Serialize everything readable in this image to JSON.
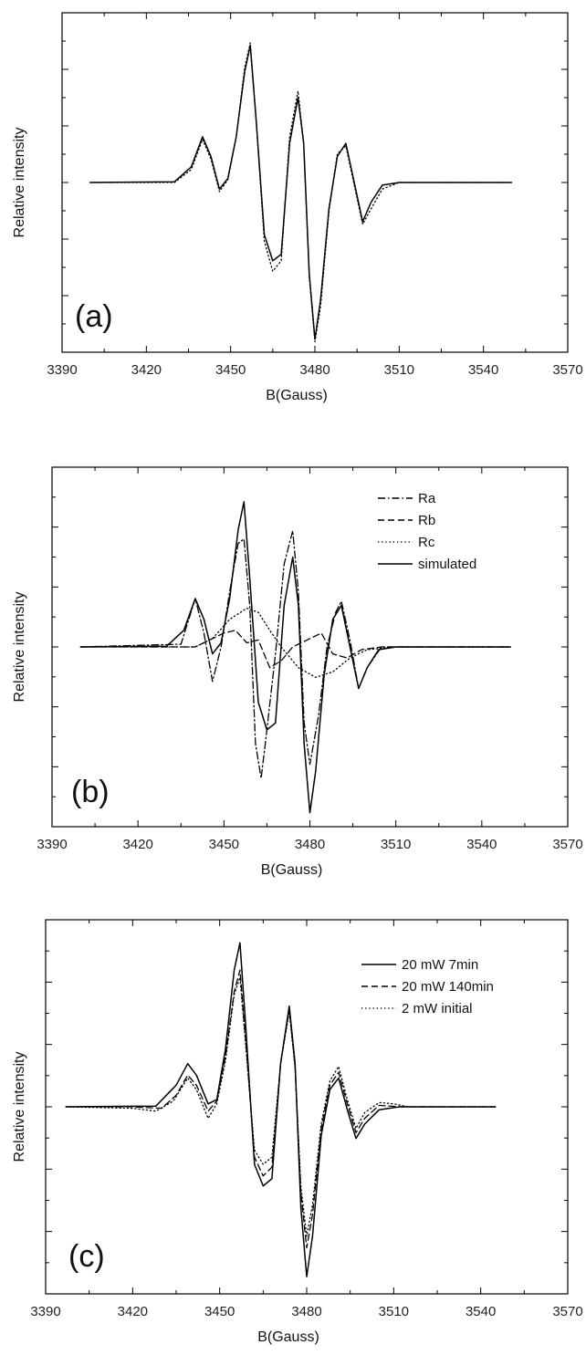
{
  "chart_data": [
    {
      "type": "line",
      "panel_label": "(a)",
      "xlabel": "B(Gauss)",
      "ylabel": "Relative intensity",
      "xlim": [
        3390,
        3570
      ],
      "ylim": [
        -1.3,
        1.3
      ],
      "xticks": [
        3390,
        3420,
        3450,
        3480,
        3510,
        3540,
        3570
      ],
      "legend": "none",
      "grid": false,
      "series": [
        {
          "style": "solid",
          "points": [
            [
              3400,
              0
            ],
            [
              3430,
              0.005
            ],
            [
              3436,
              0.12
            ],
            [
              3440,
              0.35
            ],
            [
              3443,
              0.2
            ],
            [
              3446,
              -0.05
            ],
            [
              3449,
              0.03
            ],
            [
              3452,
              0.35
            ],
            [
              3455,
              0.85
            ],
            [
              3457,
              1.05
            ],
            [
              3459,
              0.5
            ],
            [
              3462,
              -0.4
            ],
            [
              3465,
              -0.6
            ],
            [
              3468,
              -0.55
            ],
            [
              3471,
              0.3
            ],
            [
              3474,
              0.65
            ],
            [
              3476,
              0.3
            ],
            [
              3478,
              -0.7
            ],
            [
              3480,
              -1.2
            ],
            [
              3482,
              -0.9
            ],
            [
              3485,
              -0.2
            ],
            [
              3488,
              0.2
            ],
            [
              3491,
              0.3
            ],
            [
              3494,
              0.0
            ],
            [
              3497,
              -0.3
            ],
            [
              3500,
              -0.15
            ],
            [
              3504,
              -0.02
            ],
            [
              3510,
              0
            ],
            [
              3550,
              0
            ]
          ]
        },
        {
          "style": "dotted",
          "points": [
            [
              3400,
              0
            ],
            [
              3430,
              0.0
            ],
            [
              3436,
              0.1
            ],
            [
              3440,
              0.33
            ],
            [
              3443,
              0.18
            ],
            [
              3446,
              -0.07
            ],
            [
              3449,
              0.02
            ],
            [
              3452,
              0.35
            ],
            [
              3455,
              0.88
            ],
            [
              3457,
              1.07
            ],
            [
              3459,
              0.5
            ],
            [
              3462,
              -0.45
            ],
            [
              3465,
              -0.68
            ],
            [
              3468,
              -0.6
            ],
            [
              3471,
              0.35
            ],
            [
              3474,
              0.7
            ],
            [
              3476,
              0.3
            ],
            [
              3478,
              -0.72
            ],
            [
              3480,
              -1.22
            ],
            [
              3482,
              -0.95
            ],
            [
              3485,
              -0.22
            ],
            [
              3488,
              0.22
            ],
            [
              3491,
              0.28
            ],
            [
              3494,
              -0.02
            ],
            [
              3497,
              -0.32
            ],
            [
              3500,
              -0.2
            ],
            [
              3504,
              -0.05
            ],
            [
              3510,
              0
            ],
            [
              3550,
              0
            ]
          ]
        }
      ]
    },
    {
      "type": "line",
      "panel_label": "(b)",
      "xlabel": "B(Gauss)",
      "ylabel": "Relative intensity",
      "xlim": [
        3390,
        3570
      ],
      "ylim": [
        -1.3,
        1.3
      ],
      "xticks": [
        3390,
        3420,
        3450,
        3480,
        3510,
        3540,
        3570
      ],
      "legend": "top-right",
      "grid": false,
      "series": [
        {
          "name": "Ra",
          "style": "dashdot",
          "points": [
            [
              3400,
              0
            ],
            [
              3435,
              0.02
            ],
            [
              3440,
              0.35
            ],
            [
              3443,
              0.1
            ],
            [
              3446,
              -0.25
            ],
            [
              3449,
              0
            ],
            [
              3452,
              0.4
            ],
            [
              3455,
              0.75
            ],
            [
              3457,
              0.78
            ],
            [
              3459,
              0.3
            ],
            [
              3461,
              -0.7
            ],
            [
              3463,
              -0.95
            ],
            [
              3465,
              -0.6
            ],
            [
              3468,
              -0.05
            ],
            [
              3471,
              0.6
            ],
            [
              3474,
              0.84
            ],
            [
              3476,
              0.4
            ],
            [
              3478,
              -0.55
            ],
            [
              3480,
              -0.85
            ],
            [
              3483,
              -0.5
            ],
            [
              3486,
              0
            ],
            [
              3489,
              0.25
            ],
            [
              3491,
              0.33
            ],
            [
              3494,
              0.05
            ],
            [
              3497,
              -0.3
            ],
            [
              3500,
              -0.15
            ],
            [
              3505,
              0
            ],
            [
              3550,
              0
            ]
          ]
        },
        {
          "name": "Rb",
          "style": "dashed",
          "points": [
            [
              3400,
              0
            ],
            [
              3440,
              0
            ],
            [
              3450,
              0.1
            ],
            [
              3454,
              0.12
            ],
            [
              3458,
              0.03
            ],
            [
              3462,
              0.05
            ],
            [
              3466,
              -0.15
            ],
            [
              3470,
              -0.1
            ],
            [
              3474,
              0
            ],
            [
              3479,
              0.05
            ],
            [
              3484,
              0.1
            ],
            [
              3488,
              -0.05
            ],
            [
              3493,
              -0.08
            ],
            [
              3498,
              -0.02
            ],
            [
              3505,
              0
            ],
            [
              3550,
              0
            ]
          ]
        },
        {
          "name": "Rc",
          "style": "dotted",
          "points": [
            [
              3400,
              0
            ],
            [
              3440,
              0
            ],
            [
              3446,
              0.06
            ],
            [
              3452,
              0.2
            ],
            [
              3458,
              0.28
            ],
            [
              3462,
              0.25
            ],
            [
              3466,
              0.12
            ],
            [
              3470,
              0
            ],
            [
              3476,
              -0.15
            ],
            [
              3482,
              -0.22
            ],
            [
              3488,
              -0.18
            ],
            [
              3494,
              -0.08
            ],
            [
              3500,
              -0.02
            ],
            [
              3510,
              0
            ],
            [
              3550,
              0
            ]
          ]
        },
        {
          "name": "simulated",
          "style": "solid",
          "points": [
            [
              3400,
              0
            ],
            [
              3430,
              0.005
            ],
            [
              3436,
              0.12
            ],
            [
              3440,
              0.35
            ],
            [
              3443,
              0.2
            ],
            [
              3446,
              -0.05
            ],
            [
              3449,
              0.03
            ],
            [
              3452,
              0.35
            ],
            [
              3455,
              0.85
            ],
            [
              3457,
              1.05
            ],
            [
              3459,
              0.5
            ],
            [
              3462,
              -0.4
            ],
            [
              3465,
              -0.6
            ],
            [
              3468,
              -0.55
            ],
            [
              3471,
              0.3
            ],
            [
              3474,
              0.65
            ],
            [
              3476,
              0.3
            ],
            [
              3478,
              -0.7
            ],
            [
              3480,
              -1.2
            ],
            [
              3482,
              -0.9
            ],
            [
              3485,
              -0.2
            ],
            [
              3488,
              0.2
            ],
            [
              3491,
              0.3
            ],
            [
              3494,
              0.0
            ],
            [
              3497,
              -0.3
            ],
            [
              3500,
              -0.15
            ],
            [
              3504,
              -0.02
            ],
            [
              3510,
              0
            ],
            [
              3550,
              0
            ]
          ]
        }
      ]
    },
    {
      "type": "line",
      "panel_label": "(c)",
      "xlabel": "B(Gauss)",
      "ylabel": "Relative intensity",
      "xlim": [
        3390,
        3570
      ],
      "ylim": [
        -1.3,
        1.3
      ],
      "xticks": [
        3390,
        3420,
        3450,
        3480,
        3510,
        3540,
        3570
      ],
      "legend": "top-right",
      "grid": false,
      "series": [
        {
          "name": "20 mW 7min",
          "style": "solid",
          "points": [
            [
              3397,
              0
            ],
            [
              3428,
              0.005
            ],
            [
              3435,
              0.15
            ],
            [
              3439,
              0.3
            ],
            [
              3442,
              0.22
            ],
            [
              3446,
              0.02
            ],
            [
              3449,
              0.05
            ],
            [
              3452,
              0.4
            ],
            [
              3455,
              0.95
            ],
            [
              3457,
              1.14
            ],
            [
              3459,
              0.55
            ],
            [
              3462,
              -0.4
            ],
            [
              3465,
              -0.55
            ],
            [
              3468,
              -0.5
            ],
            [
              3471,
              0.3
            ],
            [
              3474,
              0.7
            ],
            [
              3476,
              0.3
            ],
            [
              3478,
              -0.7
            ],
            [
              3480,
              -1.18
            ],
            [
              3482,
              -0.9
            ],
            [
              3485,
              -0.2
            ],
            [
              3488,
              0.12
            ],
            [
              3491,
              0.2
            ],
            [
              3494,
              -0.02
            ],
            [
              3497,
              -0.22
            ],
            [
              3500,
              -0.12
            ],
            [
              3505,
              -0.02
            ],
            [
              3512,
              0
            ],
            [
              3545,
              0
            ]
          ]
        },
        {
          "name": "20 mW 140min",
          "style": "dashed",
          "points": [
            [
              3397,
              0
            ],
            [
              3420,
              0
            ],
            [
              3430,
              -0.01
            ],
            [
              3435,
              0.08
            ],
            [
              3439,
              0.22
            ],
            [
              3442,
              0.15
            ],
            [
              3446,
              -0.03
            ],
            [
              3449,
              0.04
            ],
            [
              3452,
              0.35
            ],
            [
              3455,
              0.8
            ],
            [
              3457,
              0.95
            ],
            [
              3459,
              0.45
            ],
            [
              3462,
              -0.35
            ],
            [
              3465,
              -0.48
            ],
            [
              3468,
              -0.42
            ],
            [
              3471,
              0.3
            ],
            [
              3474,
              0.68
            ],
            [
              3476,
              0.28
            ],
            [
              3478,
              -0.6
            ],
            [
              3480,
              -0.98
            ],
            [
              3482,
              -0.75
            ],
            [
              3485,
              -0.15
            ],
            [
              3488,
              0.15
            ],
            [
              3491,
              0.24
            ],
            [
              3494,
              0.02
            ],
            [
              3497,
              -0.18
            ],
            [
              3500,
              -0.08
            ],
            [
              3505,
              0.01
            ],
            [
              3512,
              0
            ],
            [
              3545,
              0
            ]
          ]
        },
        {
          "name": "2 mW initial",
          "style": "dotted",
          "points": [
            [
              3397,
              0
            ],
            [
              3420,
              -0.01
            ],
            [
              3428,
              -0.03
            ],
            [
              3434,
              0.04
            ],
            [
              3439,
              0.2
            ],
            [
              3442,
              0.12
            ],
            [
              3446,
              -0.08
            ],
            [
              3449,
              0.02
            ],
            [
              3452,
              0.32
            ],
            [
              3455,
              0.78
            ],
            [
              3457,
              0.9
            ],
            [
              3459,
              0.42
            ],
            [
              3462,
              -0.3
            ],
            [
              3465,
              -0.4
            ],
            [
              3468,
              -0.35
            ],
            [
              3471,
              0.3
            ],
            [
              3474,
              0.66
            ],
            [
              3476,
              0.27
            ],
            [
              3478,
              -0.55
            ],
            [
              3480,
              -0.9
            ],
            [
              3482,
              -0.68
            ],
            [
              3485,
              -0.12
            ],
            [
              3488,
              0.18
            ],
            [
              3491,
              0.28
            ],
            [
              3494,
              0.05
            ],
            [
              3497,
              -0.15
            ],
            [
              3500,
              -0.04
            ],
            [
              3505,
              0.03
            ],
            [
              3510,
              0.02
            ],
            [
              3515,
              0
            ],
            [
              3545,
              0
            ]
          ]
        }
      ]
    }
  ]
}
